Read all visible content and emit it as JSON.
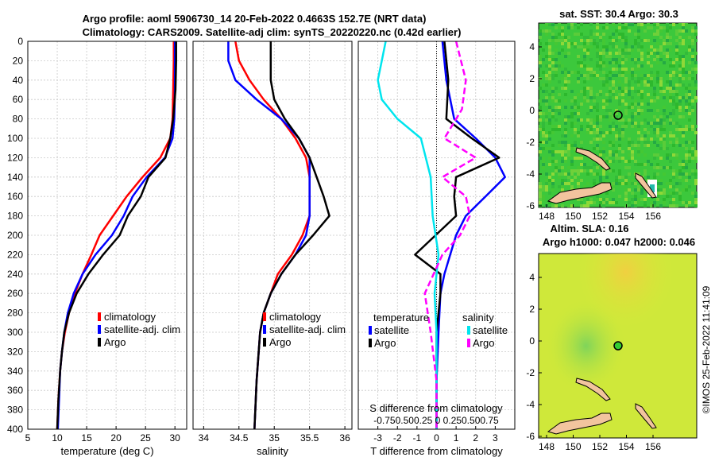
{
  "title": {
    "line1": "Argo profile: aoml 5906730_14 20-Feb-2022 0.4663S 152.7E (NRT data)",
    "line2": "Climatology: CARS2009. Satellite-adj clim: synTS_20220220.nc (0.42d earlier)"
  },
  "colors": {
    "clim": "#ff0000",
    "sat": "#0000ff",
    "argo": "#000000",
    "sat_s": "#00e5ee",
    "argo_s": "#ff00ff"
  },
  "chart_data": [
    {
      "type": "line",
      "name": "temperature",
      "xlabel": "temperature (deg C)",
      "ylabel": "",
      "xlim": [
        5,
        32
      ],
      "ylim": [
        400,
        0
      ],
      "xticks": [
        "5",
        "10",
        "15",
        "20",
        "25",
        "30"
      ],
      "yticks": [
        "0",
        "20",
        "40",
        "60",
        "80",
        "100",
        "120",
        "140",
        "160",
        "180",
        "200",
        "220",
        "240",
        "260",
        "280",
        "300",
        "320",
        "340",
        "360",
        "380",
        "400"
      ],
      "legend": [
        "climatology",
        "satellite-adj. clim",
        "Argo"
      ],
      "series": [
        {
          "name": "climatology",
          "x": [
            29.8,
            29.8,
            29.7,
            29.6,
            29.2,
            27.5,
            24.5,
            21.8,
            19.5,
            17.2,
            15.8,
            14.3,
            13.0,
            12.0,
            11.3,
            10.8,
            10.5,
            10.2,
            10.0
          ],
          "y": [
            0,
            20,
            50,
            80,
            100,
            120,
            140,
            160,
            180,
            200,
            220,
            240,
            260,
            280,
            300,
            320,
            340,
            370,
            400
          ]
        },
        {
          "name": "satellite-adj. clim",
          "x": [
            30.0,
            30.0,
            30.0,
            29.9,
            29.6,
            28.3,
            25.2,
            22.8,
            21.3,
            19.3,
            16.5,
            14.3,
            12.8,
            11.8,
            11.2,
            10.8,
            10.5,
            10.3,
            10.1
          ],
          "y": [
            0,
            20,
            50,
            80,
            100,
            120,
            140,
            160,
            180,
            200,
            220,
            240,
            260,
            280,
            300,
            320,
            340,
            370,
            400
          ]
        },
        {
          "name": "Argo",
          "x": [
            30.2,
            30.2,
            30.1,
            29.7,
            29.2,
            28.4,
            25.5,
            24.2,
            22.0,
            20.6,
            17.8,
            15.3,
            13.3,
            12.0,
            11.2,
            10.8,
            10.5,
            10.2,
            10.0
          ],
          "y": [
            0,
            20,
            50,
            80,
            100,
            120,
            140,
            160,
            180,
            200,
            220,
            240,
            260,
            280,
            300,
            320,
            340,
            370,
            400
          ]
        }
      ]
    },
    {
      "type": "line",
      "name": "salinity",
      "xlabel": "salinity",
      "xlim": [
        33.85,
        36.1
      ],
      "ylim": [
        400,
        0
      ],
      "xticks": [
        "34",
        "34.5",
        "35",
        "35.5",
        "36"
      ],
      "legend": [
        "climatology",
        "satellite-adj. clim",
        "Argo"
      ],
      "series": [
        {
          "name": "climatology",
          "x": [
            34.45,
            34.5,
            34.65,
            34.85,
            35.1,
            35.3,
            35.45,
            35.5,
            35.5,
            35.5,
            35.4,
            35.25,
            35.05,
            34.95,
            34.85,
            34.8,
            34.75,
            34.72
          ],
          "y": [
            0,
            20,
            40,
            60,
            80,
            100,
            120,
            140,
            160,
            180,
            200,
            220,
            240,
            260,
            280,
            300,
            350,
            400
          ]
        },
        {
          "name": "satellite-adj. clim",
          "x": [
            34.35,
            34.35,
            34.45,
            34.75,
            35.1,
            35.35,
            35.5,
            35.5,
            35.5,
            35.5,
            35.45,
            35.3,
            35.1,
            34.95,
            34.85,
            34.8,
            34.75,
            34.72
          ],
          "y": [
            0,
            20,
            40,
            60,
            80,
            100,
            120,
            140,
            160,
            180,
            200,
            220,
            240,
            260,
            280,
            300,
            350,
            400
          ]
        },
        {
          "name": "Argo",
          "x": [
            34.95,
            34.95,
            34.95,
            35.0,
            35.15,
            35.35,
            35.5,
            35.6,
            35.7,
            35.78,
            35.55,
            35.3,
            35.1,
            34.95,
            34.85,
            34.8,
            34.75,
            34.72
          ],
          "y": [
            0,
            20,
            40,
            60,
            80,
            100,
            120,
            140,
            160,
            180,
            200,
            220,
            240,
            260,
            280,
            300,
            350,
            400
          ]
        }
      ]
    },
    {
      "type": "line",
      "name": "difference",
      "xlabel": "T difference from climatology",
      "xlim": [
        -4,
        4
      ],
      "ylim": [
        400,
        0
      ],
      "xticks": [
        "-3",
        "-2",
        "-1",
        "0",
        "1",
        "2",
        "3"
      ],
      "legend_temperature": {
        "header": "temperature",
        "items": [
          "satellite",
          "Argo"
        ]
      },
      "legend_salinity": {
        "header": "salinity",
        "items": [
          "satellite",
          "Argo"
        ]
      },
      "s_axis": {
        "label": "S difference from climatology",
        "ticks": [
          "-0.75",
          "0.50",
          "0.25",
          "0",
          "0.25",
          "0.50",
          "0.75"
        ]
      },
      "series": [
        {
          "name": "temperature satellite",
          "x": [
            0.3,
            0.5,
            0.9,
            2.0,
            3.0,
            3.5,
            2.5,
            1.5,
            1.0,
            0.7,
            0.4,
            0.2,
            0.1,
            0,
            0
          ],
          "y": [
            0,
            40,
            80,
            100,
            120,
            140,
            160,
            180,
            200,
            220,
            240,
            260,
            300,
            350,
            400
          ]
        },
        {
          "name": "temperature Argo",
          "x": [
            0.4,
            0.6,
            0.5,
            1.8,
            3.2,
            1.0,
            0.9,
            1.0,
            -1.1,
            0.2,
            0.2,
            0.1,
            0,
            0,
            0
          ],
          "y": [
            0,
            40,
            80,
            100,
            120,
            140,
            160,
            180,
            220,
            240,
            260,
            280,
            300,
            350,
            400
          ]
        },
        {
          "name": "salinity satellite",
          "x": [
            -2.6,
            -2.8,
            -3.0,
            -2.8,
            -2.0,
            -0.8,
            -0.3,
            -0.2,
            0.1,
            -0.1,
            0,
            0
          ],
          "y": [
            0,
            20,
            40,
            60,
            80,
            100,
            140,
            180,
            220,
            260,
            300,
            400
          ]
        },
        {
          "name": "salinity Argo",
          "x": [
            1.0,
            1.5,
            1.3,
            0.4,
            2.0,
            0.3,
            1.5,
            1.7,
            1.2,
            0.3,
            -0.6,
            -0.3,
            0,
            0
          ],
          "y": [
            0,
            40,
            70,
            100,
            120,
            140,
            160,
            180,
            200,
            220,
            260,
            300,
            350,
            400
          ]
        }
      ]
    }
  ],
  "sst_map": {
    "title": "sat. SST: 30.4 Argo: 30.3",
    "xticks": [
      "148",
      "150",
      "152",
      "154",
      "156"
    ],
    "yticks": [
      "4",
      "2",
      "0",
      "-2",
      "-4",
      "-6"
    ]
  },
  "sla_map": {
    "title1": "Altim. SLA: 0.16",
    "title2": "Argo h1000: 0.047 h2000: 0.046",
    "xticks": [
      "148",
      "150",
      "152",
      "154",
      "156"
    ],
    "yticks": [
      "4",
      "2",
      "0",
      "-2",
      "-4",
      "-6"
    ]
  },
  "credit": "©IMOS 25-Feb-2022 11:41:09"
}
